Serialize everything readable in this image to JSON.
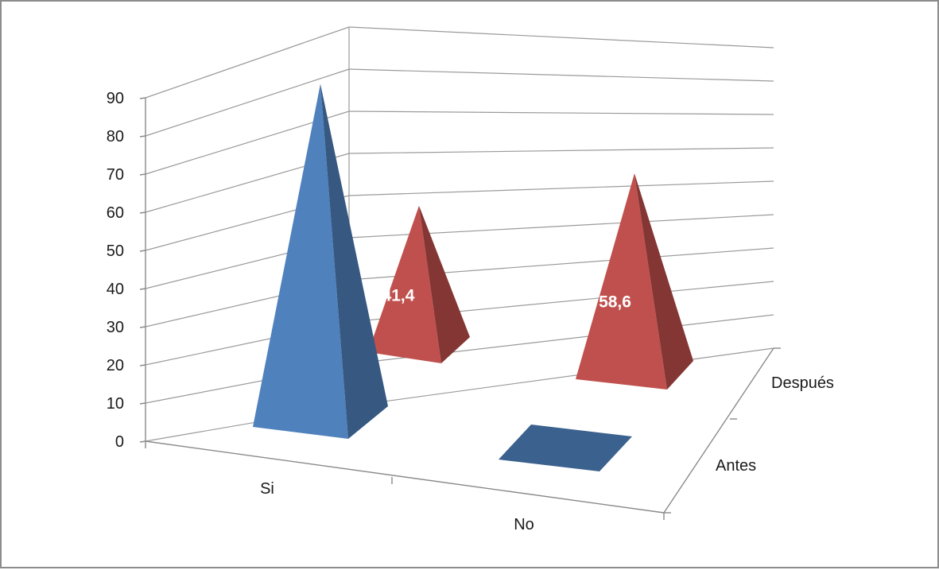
{
  "chart_data": {
    "type": "bar",
    "subtype": "3d-pyramid",
    "title": "",
    "xlabel": "",
    "ylabel": "",
    "ylim": [
      0,
      90
    ],
    "ytick_step": 10,
    "yticks": [
      "0",
      "10",
      "20",
      "30",
      "40",
      "50",
      "60",
      "70",
      "80",
      "90"
    ],
    "grid": true,
    "legend": "none",
    "categories": [
      "Si",
      "No"
    ],
    "series": [
      {
        "name": "Antes",
        "values": [
          88,
          0
        ],
        "color": "#4f81bd",
        "show_labels": false
      },
      {
        "name": "Después",
        "values": [
          41.4,
          58.6
        ],
        "color": "#c0504d",
        "show_labels": true,
        "labels": [
          "41,4",
          "58,6"
        ]
      }
    ]
  }
}
